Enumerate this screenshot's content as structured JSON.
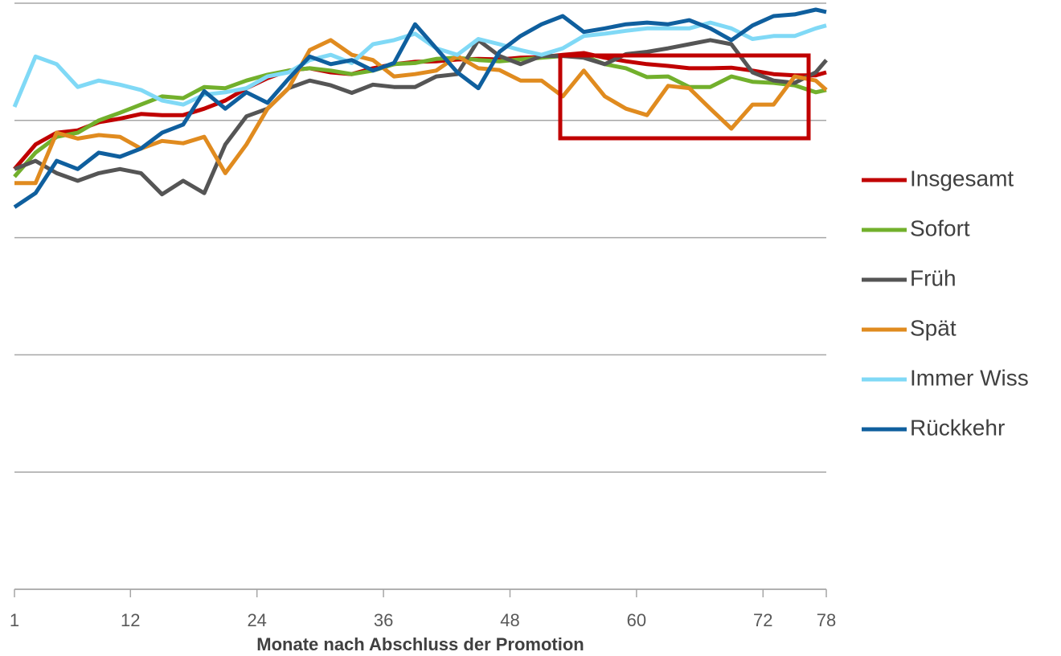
{
  "chart_data": {
    "type": "line",
    "xlabel": "Monate nach Abschluss der Promotion",
    "x": [
      1,
      3,
      5,
      7,
      9,
      11,
      13,
      15,
      17,
      19,
      21,
      23,
      25,
      27,
      29,
      31,
      33,
      35,
      37,
      39,
      41,
      43,
      45,
      47,
      49,
      51,
      53,
      55,
      57,
      59,
      61,
      63,
      65,
      67,
      69,
      71,
      73,
      75,
      77,
      78
    ],
    "xlim": [
      1,
      78
    ],
    "xticks": [
      1,
      12,
      24,
      36,
      48,
      60,
      72,
      78
    ],
    "ylim": [
      0,
      100
    ],
    "yticks": [
      0,
      20,
      40,
      60,
      80,
      100
    ],
    "grid": true,
    "legend": "right",
    "series": [
      {
        "name": "Insgesamt",
        "color": "#c00000",
        "values": [
          71.7,
          75.9,
          77.9,
          78.3,
          79.7,
          80.3,
          81.1,
          80.9,
          80.9,
          82.0,
          83.4,
          85.5,
          87.2,
          88.5,
          88.9,
          88.2,
          87.9,
          88.9,
          89.6,
          90.0,
          90.1,
          90.4,
          90.5,
          90.4,
          90.7,
          90.8,
          91.2,
          91.5,
          90.7,
          90.1,
          89.6,
          89.3,
          88.9,
          88.9,
          89.0,
          88.5,
          87.9,
          87.7,
          87.7,
          88.2
        ]
      },
      {
        "name": "Sofort",
        "color": "#72b02c",
        "values": [
          70.4,
          74.5,
          77.2,
          77.9,
          80.0,
          81.3,
          82.7,
          84.1,
          83.8,
          85.7,
          85.5,
          86.8,
          87.8,
          88.5,
          88.9,
          88.5,
          87.9,
          88.5,
          89.6,
          89.8,
          90.5,
          90.7,
          90.3,
          90.1,
          90.4,
          90.7,
          91.0,
          91.0,
          89.6,
          88.9,
          87.4,
          87.5,
          85.7,
          85.7,
          87.5,
          86.6,
          86.4,
          86.0,
          84.8,
          85.2
        ]
      },
      {
        "name": "Früh",
        "color": "#555555",
        "values": [
          71.7,
          73.1,
          71.0,
          69.7,
          71.0,
          71.7,
          71.0,
          67.4,
          69.7,
          67.6,
          75.9,
          80.7,
          82.0,
          85.5,
          86.8,
          86.0,
          84.7,
          86.1,
          85.7,
          85.7,
          87.5,
          87.9,
          93.7,
          91.0,
          89.6,
          91.0,
          91.0,
          90.7,
          89.6,
          91.3,
          91.7,
          92.3,
          93.0,
          93.7,
          93.0,
          88.2,
          86.8,
          86.4,
          88.2,
          90.3
        ]
      },
      {
        "name": "Spät",
        "color": "#e08b1f",
        "values": [
          69.3,
          69.3,
          77.9,
          76.9,
          77.5,
          77.2,
          75.2,
          76.5,
          76.1,
          77.2,
          71.0,
          75.9,
          82.0,
          85.5,
          92.0,
          93.7,
          91.2,
          90.3,
          87.5,
          87.9,
          88.5,
          91.0,
          88.9,
          88.6,
          86.8,
          86.8,
          84.1,
          88.5,
          84.1,
          82.0,
          80.9,
          85.9,
          85.5,
          82.0,
          78.6,
          82.7,
          82.7,
          87.5,
          86.8,
          85.2
        ]
      },
      {
        "name": "Immer Wiss",
        "color": "#80d9f6",
        "values": [
          82.3,
          90.9,
          89.6,
          85.7,
          86.8,
          86.1,
          85.2,
          83.4,
          82.7,
          84.4,
          84.8,
          85.5,
          87.5,
          88.2,
          90.3,
          91.2,
          89.8,
          93.0,
          93.7,
          94.8,
          92.3,
          91.2,
          93.9,
          93.0,
          92.0,
          91.2,
          92.3,
          94.4,
          94.8,
          95.3,
          95.7,
          95.7,
          95.7,
          96.7,
          95.7,
          93.9,
          94.4,
          94.4,
          95.7,
          96.2
        ]
      },
      {
        "name": "Rückkehr",
        "color": "#0f5f9e",
        "values": [
          65.2,
          67.6,
          73.1,
          71.7,
          74.5,
          73.8,
          75.2,
          77.9,
          79.3,
          85.0,
          82.0,
          84.8,
          83.0,
          87.1,
          90.9,
          89.6,
          90.3,
          88.5,
          89.8,
          96.4,
          92.3,
          88.2,
          85.5,
          91.7,
          94.4,
          96.4,
          97.8,
          95.1,
          95.7,
          96.4,
          96.7,
          96.4,
          97.1,
          95.7,
          93.7,
          96.2,
          97.8,
          98.1,
          98.9,
          98.5
        ]
      }
    ]
  }
}
